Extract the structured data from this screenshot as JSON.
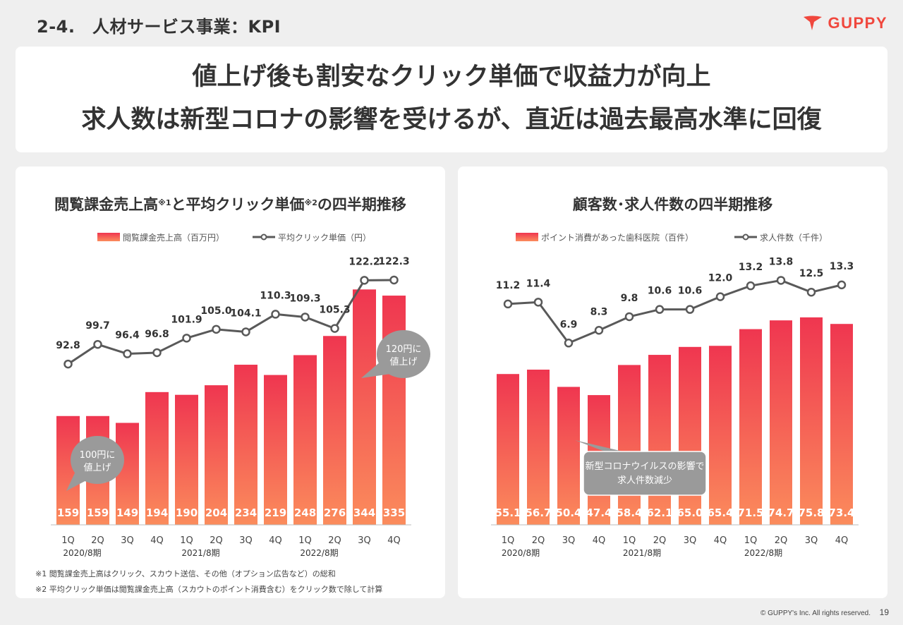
{
  "header": {
    "title": "2-4.　人材サービス事業：KPI",
    "logo_text": "GUPPY"
  },
  "headline": {
    "line1": "値上げ後も割安なクリック単価で収益力が向上",
    "line2": "求人数は新型コロナの影響を受けるが、直近は過去最高水準に回復"
  },
  "left_panel": {
    "title_part1": "閲覧課金売上高",
    "note1_mark": "※1",
    "title_part2": "と平均クリック単価",
    "note2_mark": "※2",
    "title_part3": "の四半期推移",
    "footnote1": "※1 閲覧課金売上高はクリック、スカウト送信、その他（オプション広告など）の総和",
    "footnote2": "※2 平均クリック単価は閲覧課金売上高（スカウトのポイント消費含む）をクリック数で除して計算"
  },
  "right_panel": {
    "title": "顧客数･求人件数の四半期推移"
  },
  "footer": {
    "copyright": "© GUPPY's Inc. All rights reserved.",
    "page": "19"
  },
  "colors": {
    "bar_top": "#ef3650",
    "bar_bottom": "#fb8c5c",
    "line": "#595959",
    "callout": "#9a9a9a",
    "logo": "#f0473d"
  },
  "chart_data": [
    {
      "type": "bar",
      "categories": [
        "1Q",
        "2Q",
        "3Q",
        "4Q",
        "1Q",
        "2Q",
        "3Q",
        "4Q",
        "1Q",
        "2Q",
        "3Q",
        "4Q"
      ],
      "periods": [
        "2020/8期",
        "2021/8期",
        "2022/8期"
      ],
      "series": [
        {
          "name": "閲覧課金売上高（百万円）",
          "type": "bar",
          "values": [
            159,
            159,
            149,
            194,
            190,
            204,
            234,
            219,
            248,
            276,
            344,
            335
          ]
        },
        {
          "name": "平均クリック単価（円）",
          "type": "line",
          "values": [
            92.8,
            99.7,
            96.4,
            96.8,
            101.9,
            105.0,
            104.1,
            110.3,
            109.3,
            105.3,
            122.2,
            122.3
          ]
        }
      ],
      "bar_labels": [
        "159",
        "159",
        "149",
        "194",
        "190",
        "204",
        "234",
        "219",
        "248",
        "276",
        "344",
        "335"
      ],
      "line_labels": [
        "92.8",
        "99.7",
        "96.4",
        "96.8",
        "101.9",
        "105.0",
        "104.1",
        "110.3",
        "109.3",
        "105.3",
        "122.2",
        "122.3"
      ],
      "bar_ylim": [
        0,
        400
      ],
      "line_ylim": [
        75,
        126
      ],
      "legend_placement": "top",
      "grid": false,
      "annotations": [
        {
          "line1": "100円に",
          "line2": "値上げ",
          "index": 1
        },
        {
          "line1": "120円に",
          "line2": "値上げ",
          "index": 10
        }
      ]
    },
    {
      "type": "bar",
      "categories": [
        "1Q",
        "2Q",
        "3Q",
        "4Q",
        "1Q",
        "2Q",
        "3Q",
        "4Q",
        "1Q",
        "2Q",
        "3Q",
        "4Q"
      ],
      "periods": [
        "2020/8期",
        "2021/8期",
        "2022/8期"
      ],
      "series": [
        {
          "name": "ポイント消費があった歯科医院（百件）",
          "type": "bar",
          "values": [
            55.1,
            56.7,
            50.4,
            47.4,
            58.4,
            62.1,
            65.0,
            65.4,
            71.5,
            74.7,
            75.8,
            73.4
          ]
        },
        {
          "name": "求人件数（千件）",
          "type": "line",
          "values": [
            11.2,
            11.4,
            6.9,
            8.3,
            9.8,
            10.6,
            10.6,
            12.0,
            13.2,
            13.8,
            12.5,
            13.3
          ]
        }
      ],
      "bar_labels": [
        "55.1",
        "56.7",
        "50.4",
        "47.4",
        "58.4",
        "62.1",
        "65.0",
        "65.4",
        "71.5",
        "74.7",
        "75.8",
        "73.4"
      ],
      "line_labels": [
        "11.2",
        "11.4",
        "6.9",
        "8.3",
        "9.8",
        "10.6",
        "10.6",
        "12.0",
        "13.2",
        "13.8",
        "12.5",
        "13.3"
      ],
      "bar_ylim": [
        0,
        100
      ],
      "line_ylim": [
        -1,
        15
      ],
      "legend_placement": "top",
      "grid": false,
      "annotations": [
        {
          "line1": "新型コロナウイルスの影響で",
          "line2": "求人件数減少",
          "index": 2
        }
      ]
    }
  ]
}
